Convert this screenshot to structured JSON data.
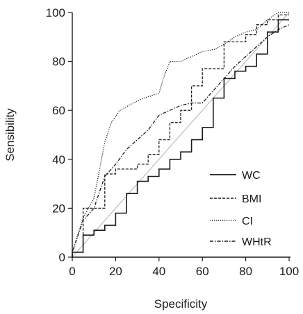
{
  "chart_data": {
    "type": "line",
    "title": "",
    "xlabel": "Specificity",
    "ylabel": "Sensibility",
    "xlim": [
      0,
      100
    ],
    "ylim": [
      0,
      100
    ],
    "xticks": [
      "0",
      "20",
      "40",
      "60",
      "80",
      "100"
    ],
    "yticks": [
      "0",
      "20",
      "40",
      "60",
      "80",
      "100"
    ],
    "grid": false,
    "legend_position": "bottom-right",
    "reference_line": {
      "x": [
        0,
        100
      ],
      "y": [
        0,
        100
      ],
      "color": "#b0b0b0"
    },
    "series": [
      {
        "name": "WC",
        "dash": "solid",
        "x": [
          0,
          0,
          5,
          5,
          10,
          10,
          15,
          15,
          20,
          20,
          25,
          25,
          30,
          30,
          35,
          35,
          40,
          40,
          45,
          45,
          50,
          50,
          55,
          55,
          60,
          60,
          65,
          65,
          70,
          70,
          75,
          75,
          80,
          80,
          85,
          85,
          90,
          90,
          95,
          95,
          100
        ],
        "y": [
          0,
          2,
          2,
          9,
          9,
          11,
          11,
          13,
          13,
          18,
          18,
          26,
          26,
          31,
          31,
          33,
          33,
          36,
          36,
          40,
          40,
          43,
          43,
          48,
          48,
          53,
          53,
          65,
          65,
          73,
          73,
          76,
          76,
          78,
          78,
          83,
          83,
          92,
          92,
          97,
          97
        ]
      },
      {
        "name": "BMI",
        "dash": "dashed",
        "x": [
          0,
          0,
          5,
          5,
          10,
          10,
          15,
          15,
          20,
          20,
          25,
          25,
          30,
          30,
          35,
          35,
          40,
          40,
          45,
          45,
          50,
          50,
          55,
          55,
          60,
          60,
          65,
          65,
          70,
          70,
          75,
          75,
          80,
          80,
          85,
          85,
          90,
          90,
          95,
          95,
          100
        ],
        "y": [
          0,
          2,
          2,
          20,
          20,
          20,
          20,
          34,
          34,
          36,
          36,
          36,
          36,
          38,
          38,
          42,
          42,
          48,
          48,
          55,
          55,
          60,
          60,
          70,
          70,
          77,
          77,
          77,
          77,
          88,
          88,
          88,
          88,
          91,
          91,
          95,
          95,
          97,
          97,
          99,
          99
        ]
      },
      {
        "name": "CI",
        "dash": "dotted",
        "x": [
          0,
          0,
          5,
          10,
          15,
          18,
          22,
          28,
          33,
          40,
          42,
          45,
          50,
          55,
          60,
          66,
          70,
          75,
          80,
          85,
          90,
          95,
          100
        ],
        "y": [
          0,
          2,
          16,
          24,
          47,
          55,
          60,
          63,
          65,
          67,
          73,
          80,
          80,
          82,
          84,
          85,
          87,
          90,
          92,
          93,
          97,
          100,
          100
        ]
      },
      {
        "name": "WHtR",
        "dash": "dashdot",
        "x": [
          0,
          0,
          5,
          10,
          15,
          20,
          25,
          30,
          35,
          40,
          45,
          50,
          55,
          60,
          65,
          70,
          75,
          80,
          85,
          90,
          95,
          100
        ],
        "y": [
          0,
          2,
          15,
          20,
          33,
          38,
          44,
          48,
          52,
          58,
          60,
          62,
          63,
          63,
          68,
          73,
          78,
          82,
          86,
          90,
          93,
          95
        ]
      }
    ]
  }
}
